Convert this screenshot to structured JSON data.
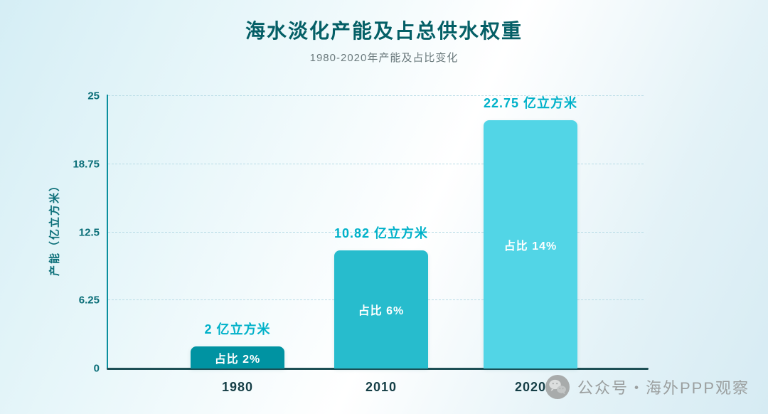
{
  "page": {
    "title": "海水淡化产能及占总供水权重",
    "subtitle": "1980-2020年产能及占比变化"
  },
  "chart_data": {
    "type": "bar",
    "title": "海水淡化产能及占总供水权重",
    "subtitle": "1980-2020年产能及占比变化",
    "ylabel": "产能（亿立方米）",
    "xlabel": "",
    "ylim": [
      0,
      25
    ],
    "yticks": [
      0,
      6.25,
      12.5,
      18.75,
      25
    ],
    "categories": [
      "1980",
      "2010",
      "2020"
    ],
    "values": [
      2,
      10.82,
      22.75
    ],
    "value_labels": [
      "2 亿立方米",
      "10.82 亿立方米",
      "22.75 亿立方米"
    ],
    "share_labels": [
      "占比 2%",
      "占比 6%",
      "占比 14%"
    ],
    "share_values_pct": [
      2,
      6,
      14
    ],
    "bar_colors": [
      "#0093a2",
      "#27bccd",
      "#52d5e6"
    ],
    "grid": "dashed horizontal gridlines at y ticks",
    "legend": "none"
  },
  "colors": {
    "title": "#045f66",
    "subtitle": "#6b7a7d",
    "axis": "#0a8f9e",
    "value_label": "#00b1c9",
    "tick_label": "#0a6e78"
  },
  "watermark": {
    "icon": "wechat-icon",
    "text": "公众号・海外PPP观察"
  }
}
